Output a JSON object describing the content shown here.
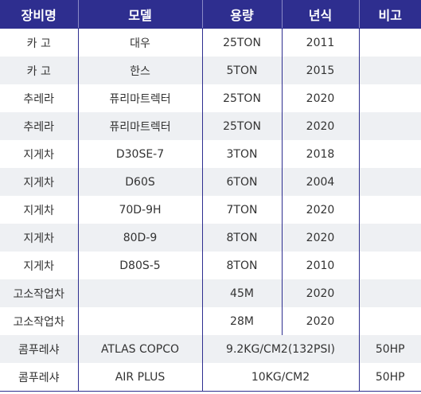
{
  "table": {
    "headers": [
      "장비명",
      "모델",
      "용량",
      "년식",
      "비고"
    ],
    "rows": [
      {
        "name": "카 고",
        "model": "대우",
        "capacity": "25TON",
        "year": "2011",
        "note": ""
      },
      {
        "name": "카 고",
        "model": "한스",
        "capacity": "5TON",
        "year": "2015",
        "note": ""
      },
      {
        "name": "추레라",
        "model": "퓨리마트렉터",
        "capacity": "25TON",
        "year": "2020",
        "note": ""
      },
      {
        "name": "추레라",
        "model": "퓨리마트렉터",
        "capacity": "25TON",
        "year": "2020",
        "note": ""
      },
      {
        "name": "지게차",
        "model": "D30SE-7",
        "capacity": "3TON",
        "year": "2018",
        "note": ""
      },
      {
        "name": "지게차",
        "model": "D60S",
        "capacity": "6TON",
        "year": "2004",
        "note": ""
      },
      {
        "name": "지게차",
        "model": "70D-9H",
        "capacity": "7TON",
        "year": "2020",
        "note": ""
      },
      {
        "name": "지게차",
        "model": "80D-9",
        "capacity": "8TON",
        "year": "2020",
        "note": ""
      },
      {
        "name": "지게차",
        "model": "D80S-5",
        "capacity": "8TON",
        "year": "2010",
        "note": ""
      },
      {
        "name": "고소작업차",
        "model": "",
        "capacity": "45M",
        "year": "2020",
        "note": ""
      },
      {
        "name": "고소작업차",
        "model": "",
        "capacity": "28M",
        "year": "2020",
        "note": ""
      },
      {
        "name": "콤푸레샤",
        "model": "ATLAS COPCO",
        "capacity_year": "9.2KG/CM2(132PSI)",
        "note": "50HP"
      },
      {
        "name": "콤푸레샤",
        "model": "AIR PLUS",
        "capacity_year": "10KG/CM2",
        "note": "50HP"
      }
    ]
  },
  "colors": {
    "header_bg": "#2e2e8f",
    "header_text": "#ffffff",
    "stripe": "#eef0f3",
    "body_text": "#333333"
  }
}
